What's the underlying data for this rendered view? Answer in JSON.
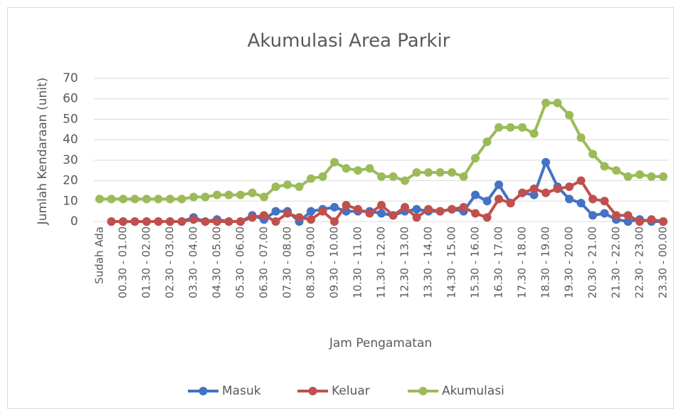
{
  "chart_data": {
    "type": "line",
    "title": "Akumulasi Area Parkir",
    "x_label": "Jam Pengamatan",
    "y_label": "Jumlah Kendaraan (unit)",
    "categories": [
      "Sudah Ada",
      null,
      "00.30 - 01.00",
      null,
      "01.30 - 02.00",
      null,
      "02.30 - 03.00",
      null,
      "03.30 - 04.00",
      null,
      "04.30 - 05.00",
      null,
      "05.30 - 06.00",
      null,
      "06.30 - 07.00",
      null,
      "07.30 - 08.00",
      null,
      "08.30 - 09.00",
      null,
      "09.30 - 10.00",
      null,
      "10.30 - 11.00",
      null,
      "11.30 - 12.00",
      null,
      "12.30 - 13.00",
      null,
      "13.30 - 14.00",
      null,
      "14.30 - 15.00",
      null,
      "15.30 - 16.00",
      null,
      "16.30 - 17.00",
      null,
      "17.30 - 18.00",
      null,
      "18.30 - 19.00",
      null,
      "19.30 - 20.00",
      null,
      "20.30 - 21.00",
      null,
      "21.30 - 22.00",
      null,
      "22.30 - 23.00",
      null,
      "23.30 - 00.00"
    ],
    "series": [
      {
        "name": "Masuk",
        "color": "#4472c4",
        "values": [
          null,
          0,
          0,
          0,
          0,
          0,
          0,
          0,
          2,
          0,
          1,
          0,
          0,
          3,
          1,
          5,
          5,
          0,
          5,
          6,
          7,
          5,
          5,
          5,
          4,
          3,
          5,
          6,
          5,
          5,
          6,
          5,
          13,
          10,
          18,
          9,
          14,
          13,
          29,
          17,
          11,
          9,
          3,
          4,
          1,
          0,
          1,
          0,
          0
        ]
      },
      {
        "name": "Keluar",
        "color": "#c0504d",
        "values": [
          null,
          0,
          0,
          0,
          0,
          0,
          0,
          0,
          1,
          0,
          0,
          0,
          0,
          2,
          3,
          0,
          4,
          2,
          1,
          5,
          0,
          8,
          6,
          4,
          8,
          3,
          7,
          2,
          6,
          5,
          6,
          7,
          4,
          2,
          11,
          9,
          14,
          16,
          14,
          16,
          17,
          20,
          11,
          10,
          3,
          3,
          0,
          1,
          0
        ]
      },
      {
        "name": "Akumulasi",
        "color": "#9bbb59",
        "values": [
          11,
          11,
          11,
          11,
          11,
          11,
          11,
          11,
          12,
          12,
          13,
          13,
          13,
          14,
          12,
          17,
          18,
          17,
          21,
          22,
          29,
          26,
          25,
          26,
          22,
          22,
          20,
          24,
          24,
          24,
          24,
          22,
          31,
          39,
          46,
          46,
          46,
          43,
          58,
          58,
          52,
          41,
          33,
          27,
          25,
          22,
          23,
          22,
          22
        ]
      }
    ],
    "ylim": [
      0,
      70
    ],
    "yticks": [
      0,
      10,
      20,
      30,
      40,
      50,
      60,
      70
    ],
    "grid": true,
    "legend": "bottom"
  }
}
